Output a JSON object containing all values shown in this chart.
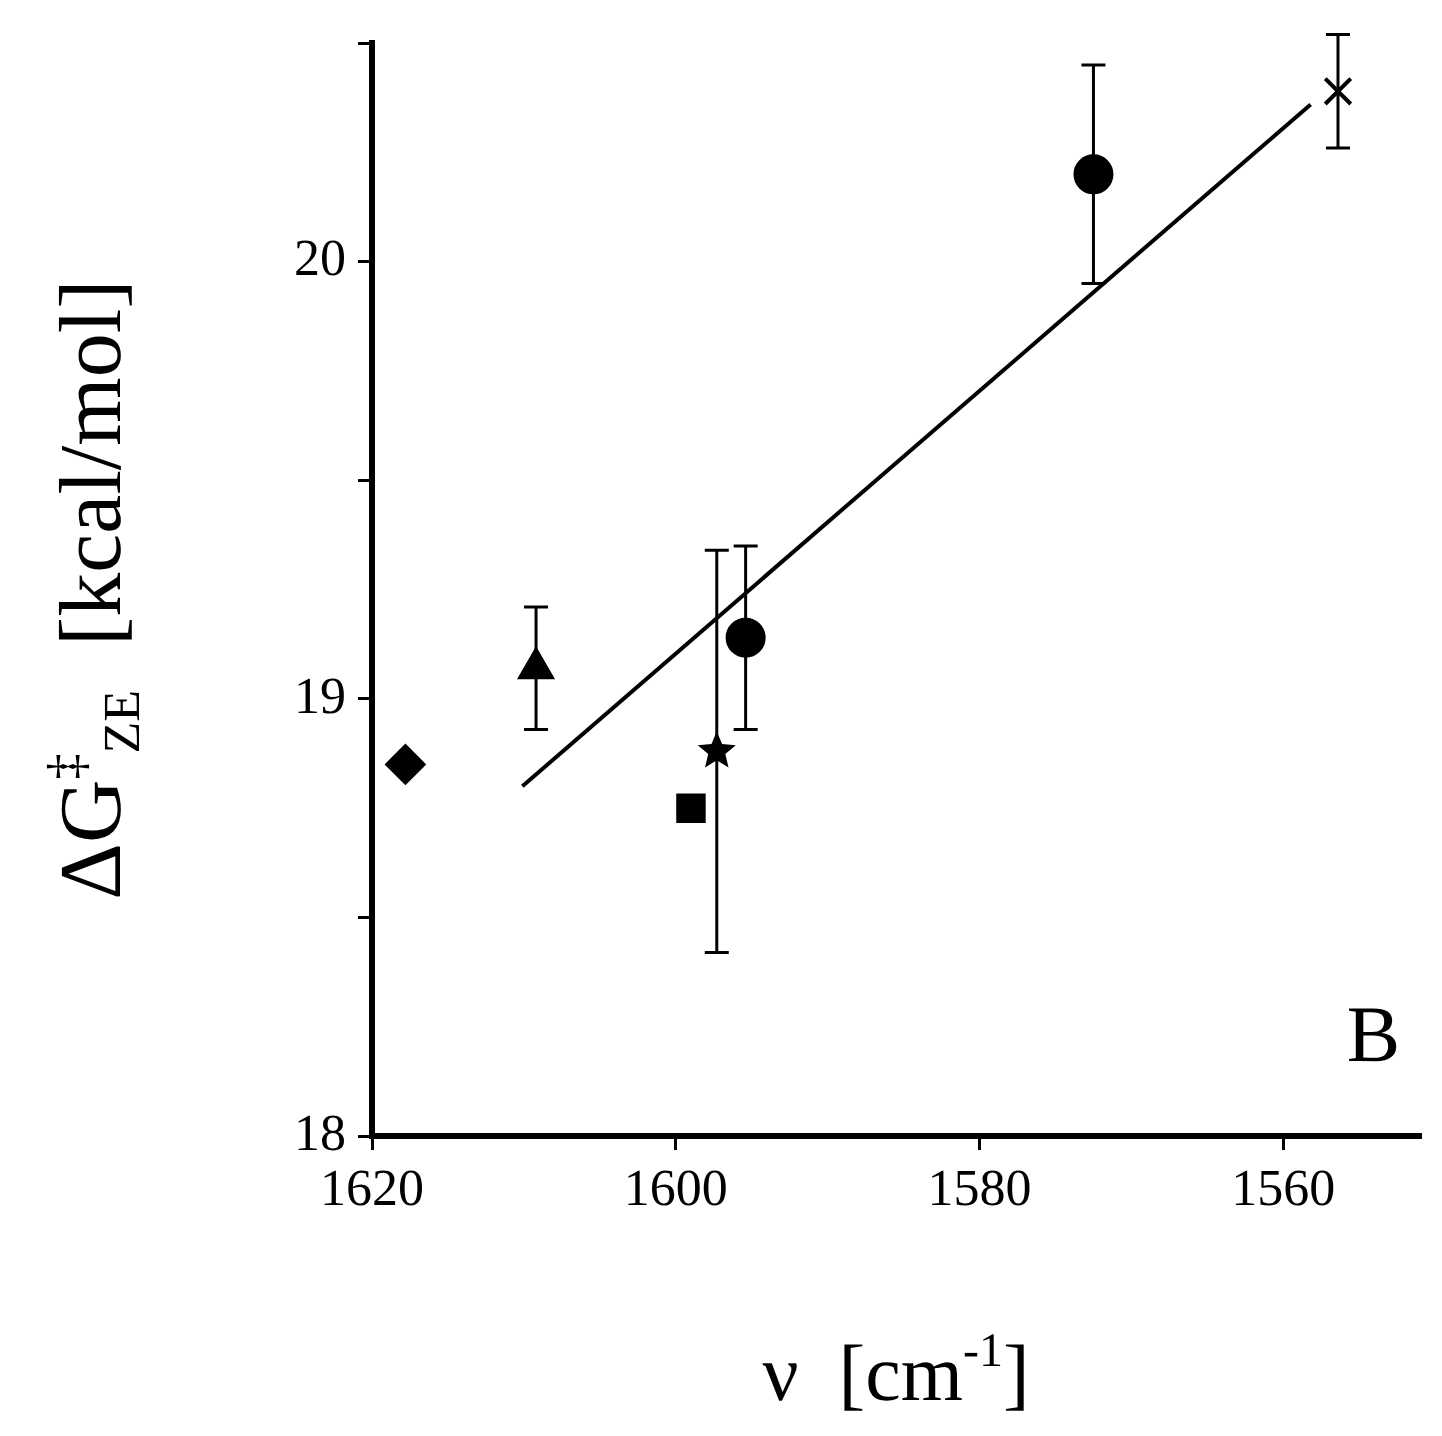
{
  "chart_data": {
    "type": "scatter",
    "xlabel": "ν  [cm$^{-1}$]",
    "ylabel": "ΔG$^{‡}$$_{ZE}$  [kcal/mol]",
    "annotations": [
      "B"
    ],
    "xlim": [
      1620,
      1551
    ],
    "xticks": [
      1620,
      1600,
      1580,
      1560
    ],
    "ylim": [
      18,
      20.5
    ],
    "yticks": [
      18,
      {
        "value": 18.5,
        "label": null
      },
      19,
      {
        "value": 19.5,
        "label": null
      },
      20,
      {
        "value": 20.5,
        "label": null
      }
    ],
    "grid": false,
    "series": [
      {
        "color": "#000000",
        "marker": "diamond",
        "x": [
          1617.8
        ],
        "values": [
          18.85
        ]
      },
      {
        "color": "#000000",
        "marker": "triangle",
        "x": [
          1609.2
        ],
        "values": [
          19.07
        ],
        "errors": [
          0.14
        ]
      },
      {
        "color": "#000000",
        "marker": "square",
        "x": [
          1599.0
        ],
        "values": [
          18.75
        ]
      },
      {
        "color": "#000000",
        "marker": "star",
        "x": [
          1597.3
        ],
        "values": [
          18.88
        ],
        "errors": [
          0.46
        ]
      },
      {
        "color": "#000000",
        "marker": "circle",
        "x": [
          1595.4
        ],
        "values": [
          19.14
        ],
        "errors": [
          0.21
        ]
      },
      {
        "color": "#000000",
        "marker": "circle",
        "x": [
          1572.5
        ],
        "values": [
          20.2
        ],
        "errors": [
          0.25
        ]
      },
      {
        "color": "#000000",
        "marker": "cross",
        "x": [
          1556.4
        ],
        "values": [
          20.39
        ],
        "errors": [
          0.13
        ]
      },
      {
        "type": "line",
        "color": "#000000",
        "marker": "none",
        "x": [
          1610.1,
          1558.2
        ],
        "values": [
          18.8,
          20.36
        ]
      }
    ]
  }
}
